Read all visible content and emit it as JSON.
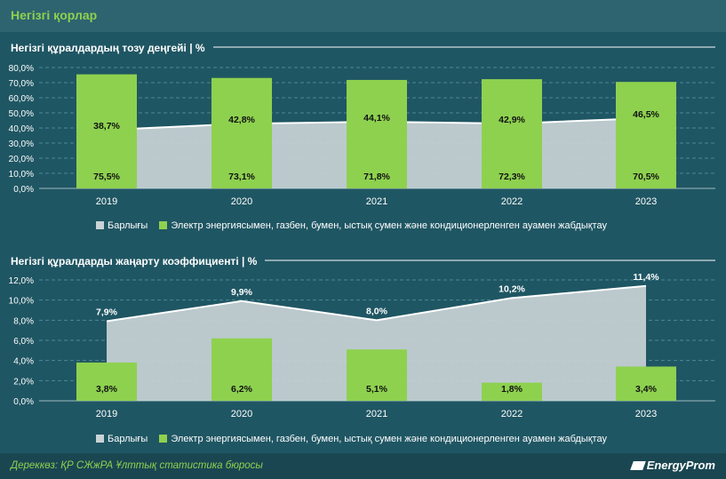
{
  "header": {
    "title": "Негізгі қорлар"
  },
  "footer": {
    "source": "Дереккөз: ҚР СЖжРА Ұлттық статистика бюросы",
    "logo_text": "EnergyProm"
  },
  "colors": {
    "background": "#1f5663",
    "accent": "#8ed14f",
    "area": "#c9d3d6",
    "area_line": "#ffffff"
  },
  "chart_data": [
    {
      "type": "bar",
      "title": "Негізгі құралдардың тозу деңгейі | %",
      "categories": [
        "2019",
        "2020",
        "2021",
        "2022",
        "2023"
      ],
      "series": [
        {
          "name": "Барлығы",
          "kind": "area",
          "values": [
            38.7,
            42.8,
            44.1,
            42.9,
            46.5
          ],
          "labels": [
            "38,7%",
            "42,8%",
            "44,1%",
            "42,9%",
            "46,5%"
          ]
        },
        {
          "name": "Электр энергиясымен, газбен, бумен, ыстық сумен және кондиционерленген ауамен жабдықтау",
          "kind": "bar",
          "values": [
            75.5,
            73.1,
            71.8,
            72.3,
            70.5
          ],
          "labels": [
            "75,5%",
            "73,1%",
            "71,8%",
            "72,3%",
            "70,5%"
          ]
        }
      ],
      "ylim": [
        0,
        80
      ],
      "yticks": [
        "0,0%",
        "10,0%",
        "20,0%",
        "30,0%",
        "40,0%",
        "50,0%",
        "60,0%",
        "70,0%",
        "80,0%"
      ],
      "grid": true,
      "legend_position": "bottom"
    },
    {
      "type": "bar",
      "title": "Негізгі құралдарды жаңарту коэффициенті | %",
      "categories": [
        "2019",
        "2020",
        "2021",
        "2022",
        "2023"
      ],
      "series": [
        {
          "name": "Барлығы",
          "kind": "area",
          "values": [
            7.9,
            9.9,
            8.0,
            10.2,
            11.4
          ],
          "labels": [
            "7,9%",
            "9,9%",
            "8,0%",
            "10,2%",
            "11,4%"
          ]
        },
        {
          "name": "Электр энергиясымен, газбен, бумен, ыстық сумен және кондиционерленген ауамен жабдықтау",
          "kind": "bar",
          "values": [
            3.8,
            6.2,
            5.1,
            1.8,
            3.4
          ],
          "labels": [
            "3,8%",
            "6,2%",
            "5,1%",
            "1,8%",
            "3,4%"
          ]
        }
      ],
      "ylim": [
        0,
        12
      ],
      "yticks": [
        "0,0%",
        "2,0%",
        "4,0%",
        "6,0%",
        "8,0%",
        "10,0%",
        "12,0%"
      ],
      "grid": true,
      "legend_position": "bottom"
    }
  ]
}
